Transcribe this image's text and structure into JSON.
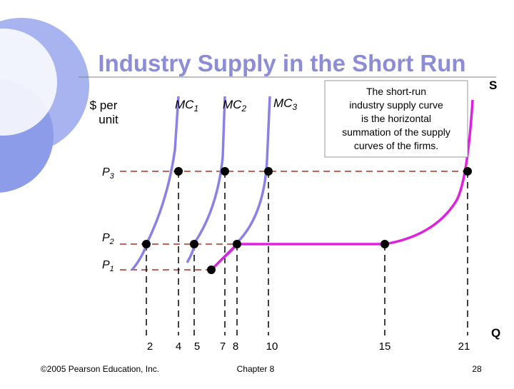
{
  "title": "Industry Supply in the Short Run",
  "y_axis_label": {
    "line1": "$ per",
    "line2": "unit"
  },
  "x_axis_label": "Q",
  "supply_label": "S",
  "curve_labels": [
    {
      "text": "MC",
      "sub": "1"
    },
    {
      "text": "MC",
      "sub": "2"
    },
    {
      "text": "MC",
      "sub": "3"
    }
  ],
  "price_labels": [
    {
      "text": "P",
      "sub": "3"
    },
    {
      "text": "P",
      "sub": "2"
    },
    {
      "text": "P",
      "sub": "1"
    }
  ],
  "quantity_labels": [
    "2",
    "4",
    "5",
    "7",
    "8",
    "10",
    "15",
    "21"
  ],
  "annotation": [
    "The short-run",
    "industry supply curve",
    "is the horizontal",
    "summation of the supply",
    "curves of the firms."
  ],
  "footer": {
    "copyright": "©2005 Pearson Education, Inc.",
    "chapter": "Chapter 8",
    "page": "28"
  }
}
